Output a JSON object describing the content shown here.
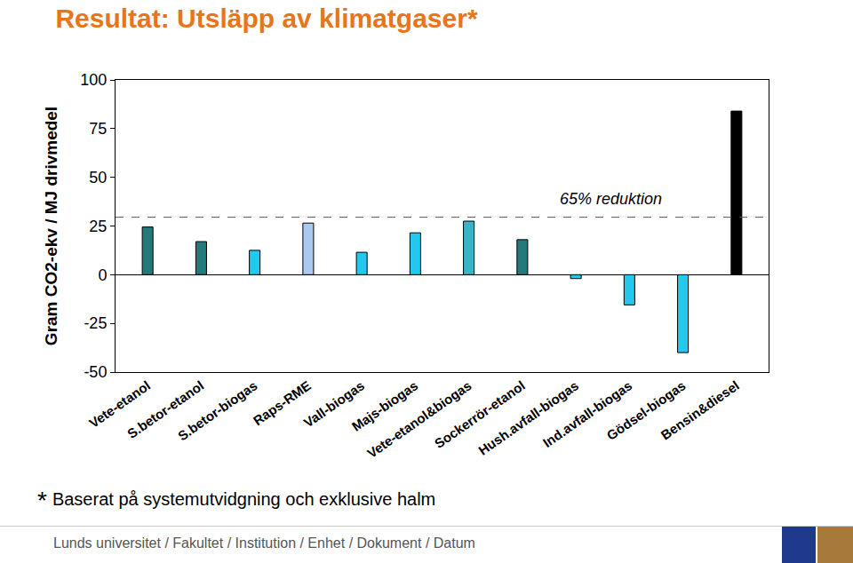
{
  "chart_data": {
    "type": "bar",
    "title": "Resultat: Utsläpp av klimatgaser*",
    "y_label": "Gram CO2-ekv / MJ drivmedel",
    "categories": [
      "Vete-etanol",
      "S.betor-etanol",
      "S.betor-biogas",
      "Raps-RME",
      "Vall-biogas",
      "Majs-biogas",
      "Vete-etanol&biogas",
      "Sockerrör-etanol",
      "Hush.avfall-biogas",
      "Ind.avfall-biogas",
      "Gödsel-biogas",
      "Bensin&diesel"
    ],
    "values": [
      24.5,
      17,
      12.5,
      26.5,
      11.5,
      21.5,
      27.5,
      18,
      -2,
      -15.5,
      -40,
      84
    ],
    "colors": [
      "#247a7a",
      "#247a7a",
      "#22c8ee",
      "#a9c8f2",
      "#22c8ee",
      "#22c8ee",
      "#3bb4c8",
      "#247a7a",
      "#22c8ee",
      "#22c8ee",
      "#22c8ee",
      "#000000"
    ],
    "ylim": [
      -50,
      100
    ],
    "yticks": [
      -50,
      -25,
      0,
      25,
      50,
      75,
      100
    ],
    "grid": false,
    "reference_line": {
      "value": 29.5,
      "label": "65% reduktion",
      "label_y": 39
    }
  },
  "footnote": "Baserat på systemutvidgning och exklusive halm",
  "footnote_mark": "*",
  "footer": "Lunds universitet / Fakultet / Institution / Enhet / Dokument / Datum"
}
